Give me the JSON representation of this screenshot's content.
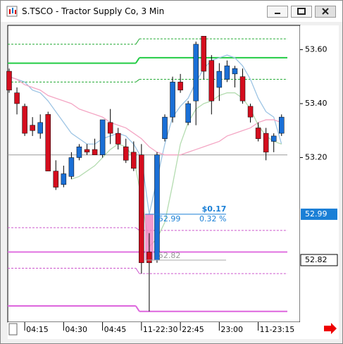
{
  "window": {
    "title": "S.TSCO - Tractor Supply Co, 3 Min"
  },
  "chart_data": {
    "type": "candlestick",
    "categories": [
      null,
      null,
      "04:15",
      null,
      null,
      null,
      null,
      "04:30",
      null,
      null,
      null,
      null,
      "04:45",
      null,
      null,
      null,
      null,
      "11-22:30",
      null,
      null,
      null,
      null,
      "22:45",
      null,
      null,
      null,
      null,
      "23:00",
      null,
      null,
      null,
      null,
      "11-23:15",
      null,
      null,
      null
    ],
    "open": [
      53.52,
      53.44,
      53.39,
      53.32,
      53.29,
      53.36,
      53.15,
      53.1,
      53.13,
      53.2,
      53.23,
      53.23,
      53.21,
      53.33,
      53.29,
      53.24,
      53.22,
      53.21,
      52.85,
      52.82,
      53.27,
      53.35,
      53.48,
      53.33,
      53.41,
      53.65,
      53.56,
      53.46,
      53.49,
      53.51,
      53.5,
      53.39,
      53.31,
      53.29,
      53.26,
      53.29
    ],
    "high": [
      53.53,
      53.46,
      53.4,
      53.35,
      53.36,
      53.37,
      53.19,
      53.17,
      53.22,
      53.25,
      53.25,
      53.27,
      53.34,
      53.38,
      53.31,
      53.27,
      53.26,
      53.25,
      52.92,
      53.22,
      53.36,
      53.5,
      53.51,
      53.41,
      53.63,
      53.65,
      53.58,
      53.55,
      53.56,
      53.54,
      53.53,
      53.4,
      53.33,
      53.31,
      53.29,
      53.36
    ],
    "low": [
      53.44,
      53.36,
      53.28,
      53.28,
      53.27,
      53.15,
      53.08,
      53.09,
      53.12,
      53.19,
      53.21,
      53.21,
      53.2,
      53.25,
      53.23,
      53.18,
      53.15,
      52.77,
      52.63,
      52.81,
      53.26,
      53.33,
      53.44,
      53.32,
      53.32,
      53.49,
      53.36,
      53.41,
      53.48,
      53.46,
      53.4,
      53.33,
      53.26,
      53.19,
      53.22,
      53.28
    ],
    "close": [
      53.45,
      53.4,
      53.29,
      53.3,
      53.33,
      53.15,
      53.09,
      53.14,
      53.2,
      53.24,
      53.22,
      53.21,
      53.34,
      53.29,
      53.25,
      53.19,
      53.16,
      52.81,
      52.81,
      53.21,
      53.35,
      53.48,
      53.45,
      53.4,
      53.62,
      53.52,
      53.41,
      53.52,
      53.54,
      53.53,
      53.41,
      53.35,
      53.27,
      53.22,
      53.28,
      53.35
    ],
    "up_color": "#1a6fd6",
    "down_color": "#d40d1e",
    "series": [
      {
        "color": "#9cc4e4",
        "values": [
          53.5,
          53.49,
          53.48,
          53.45,
          53.44,
          53.41,
          53.37,
          53.33,
          53.29,
          53.27,
          53.25,
          53.25,
          53.27,
          53.28,
          53.29,
          53.28,
          53.25,
          53.2,
          52.99,
          53.12,
          53.25,
          53.35,
          53.39,
          53.42,
          53.48,
          53.53,
          53.56,
          53.57,
          53.58,
          53.57,
          53.54,
          53.49,
          53.42,
          53.37,
          53.35,
          53.25
        ]
      },
      {
        "color": "#f4a6c4",
        "values": [
          53.5,
          53.49,
          53.47,
          53.46,
          53.45,
          53.43,
          53.42,
          53.41,
          53.4,
          53.38,
          53.37,
          53.36,
          53.35,
          53.33,
          53.32,
          53.31,
          53.29,
          53.27,
          53.24,
          53.22,
          53.21,
          53.21,
          53.21,
          53.22,
          53.23,
          53.24,
          53.25,
          53.26,
          53.28,
          53.29,
          53.3,
          53.31,
          53.33,
          53.34,
          53.34,
          53.33
        ]
      },
      {
        "color": "#b4dcb0",
        "values": [
          null,
          null,
          null,
          null,
          null,
          null,
          null,
          null,
          53.12,
          53.13,
          53.15,
          53.17,
          53.2,
          53.23,
          53.25,
          53.24,
          53.2,
          53.05,
          52.87,
          52.9,
          52.96,
          53.1,
          53.25,
          53.33,
          53.38,
          53.4,
          53.41,
          53.43,
          53.44,
          53.44,
          53.42,
          53.38,
          53.32,
          53.28,
          53.26,
          53.25
        ]
      }
    ],
    "levels": [
      {
        "color": "#22cc44",
        "dash": false,
        "values": [
          53.55,
          53.57
        ]
      },
      {
        "color": "#22aa33",
        "dash": true,
        "values": [
          53.62,
          53.64
        ]
      },
      {
        "color": "#22aa33",
        "dash": true,
        "values": [
          53.48,
          53.49
        ]
      },
      {
        "color": "#e070e0",
        "dash": false,
        "values": [
          52.85,
          52.85
        ]
      },
      {
        "color": "#cc55cc",
        "dash": true,
        "values": [
          52.94,
          52.93
        ]
      },
      {
        "color": "#cc55cc",
        "dash": true,
        "values": [
          52.79,
          52.77
        ]
      },
      {
        "color": "#dd66dd",
        "dash": false,
        "values": [
          52.65,
          52.63
        ]
      }
    ],
    "reference_line": 53.21,
    "measure": {
      "change": "$0.17",
      "percent": "0.32 %",
      "start": 52.82,
      "end": 52.99
    },
    "ylim": [
      52.59,
      53.69
    ],
    "yticks": [
      {
        "value": 53.2,
        "label": "53.20"
      },
      {
        "value": 53.4,
        "label": "53.40"
      },
      {
        "value": 53.6,
        "label": "53.60"
      }
    ]
  }
}
